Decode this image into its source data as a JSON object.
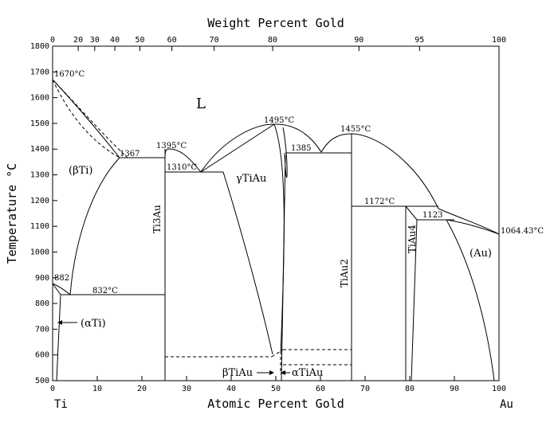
{
  "diagram": {
    "top_axis_title": "Weight Percent Gold",
    "bottom_axis_title": "Atomic Percent Gold",
    "left_axis_title": "Temperature °C",
    "left_element": "Ti",
    "right_element": "Au",
    "top_ticks": [
      "0",
      "20",
      "30",
      "40",
      "50",
      "60",
      "70",
      "80",
      "90",
      "95",
      "100"
    ],
    "bottom_ticks": [
      "0",
      "10",
      "20",
      "30",
      "40",
      "50",
      "60",
      "70",
      "80",
      "90",
      "100"
    ],
    "left_ticks": [
      "1800",
      "1700",
      "1600",
      "1500",
      "1400",
      "1300",
      "1200",
      "1100",
      "1000",
      "900",
      "800",
      "700",
      "600",
      "500"
    ],
    "labels": {
      "liquid": "L",
      "t1670": "1670°C",
      "t1367": "1367",
      "t1395": "1395°C",
      "t1310": "1310°C",
      "t1495": "1495°C",
      "t1385": "1385",
      "t1455": "1455°C",
      "t1172": "1172°C",
      "t1123": "1123",
      "t1064": "1064.43°C",
      "t882": "882",
      "t832": "832°C",
      "beta_ti": "(βTi)",
      "alpha_ti": "(αTi)",
      "gamma_tiau": "γTiAu",
      "beta_tiau": "βTiAu",
      "alpha_tiau": "αTiAu",
      "au_phase": "(Au)",
      "ti3au": "Ti3Au",
      "tiau2": "TiAu2",
      "tiau4": "TiAu4"
    }
  }
}
